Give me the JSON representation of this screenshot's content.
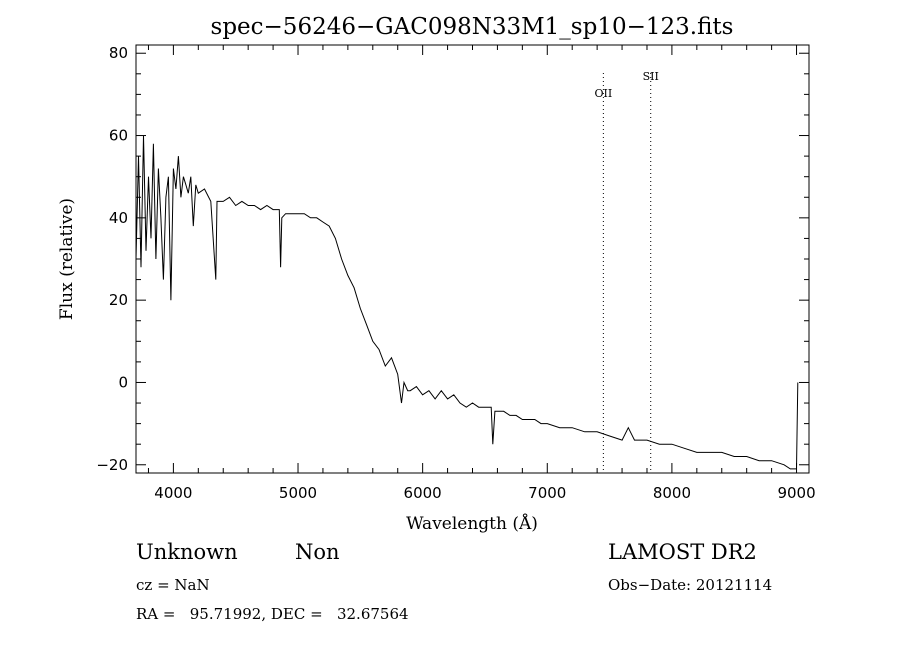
{
  "chart_data": {
    "type": "line",
    "title": "spec−56246−GAC098N33M1_sp10−123.fits",
    "xlabel": "Wavelength (Å)",
    "ylabel": "Flux (relative)",
    "xlim": [
      3700,
      9100
    ],
    "ylim": [
      -22,
      82
    ],
    "xticks": [
      {
        "value": 4000,
        "label": "4000"
      },
      {
        "value": 5000,
        "label": "5000"
      },
      {
        "value": 6000,
        "label": "6000"
      },
      {
        "value": 7000,
        "label": "7000"
      },
      {
        "value": 8000,
        "label": "8000"
      },
      {
        "value": 9000,
        "label": "9000"
      }
    ],
    "yticks": [
      {
        "value": -20,
        "label": "−20"
      },
      {
        "value": 0,
        "label": "0"
      },
      {
        "value": 20,
        "label": "20"
      },
      {
        "value": 40,
        "label": "40"
      },
      {
        "value": 60,
        "label": "60"
      },
      {
        "value": 80,
        "label": "80"
      }
    ],
    "grid": false,
    "series": [
      {
        "x": [
          3700,
          3720,
          3740,
          3760,
          3780,
          3800,
          3820,
          3840,
          3860,
          3880,
          3900,
          3920,
          3940,
          3960,
          3980,
          4000,
          4020,
          4040,
          4060,
          4080,
          4100,
          4120,
          4140,
          4160,
          4180,
          4200,
          4250,
          4300,
          4340,
          4350,
          4400,
          4450,
          4500,
          4550,
          4600,
          4650,
          4700,
          4750,
          4800,
          4850,
          4860,
          4870,
          4900,
          4950,
          5000,
          5050,
          5100,
          5150,
          5200,
          5250,
          5300,
          5350,
          5400,
          5450,
          5500,
          5550,
          5600,
          5650,
          5700,
          5750,
          5800,
          5830,
          5850,
          5880,
          5900,
          5950,
          6000,
          6050,
          6100,
          6150,
          6200,
          6250,
          6300,
          6350,
          6400,
          6450,
          6500,
          6550,
          6563,
          6580,
          6600,
          6650,
          6700,
          6750,
          6800,
          6850,
          6900,
          6950,
          7000,
          7100,
          7200,
          7300,
          7400,
          7500,
          7600,
          7650,
          7700,
          7800,
          7900,
          8000,
          8100,
          8200,
          8300,
          8400,
          8500,
          8600,
          8700,
          8800,
          8900,
          8950,
          9000,
          9010
        ],
        "y": [
          30,
          55,
          28,
          60,
          32,
          50,
          35,
          58,
          30,
          52,
          40,
          25,
          45,
          50,
          20,
          52,
          47,
          55,
          45,
          50,
          48,
          46,
          50,
          38,
          48,
          46,
          47,
          44,
          25,
          44,
          44,
          45,
          43,
          44,
          43,
          43,
          42,
          43,
          42,
          42,
          28,
          40,
          41,
          41,
          41,
          41,
          40,
          40,
          39,
          38,
          35,
          30,
          26,
          23,
          18,
          14,
          10,
          8,
          4,
          6,
          2,
          -5,
          0,
          -2,
          -2,
          -1,
          -3,
          -2,
          -4,
          -2,
          -4,
          -3,
          -5,
          -6,
          -5,
          -6,
          -6,
          -6,
          -15,
          -7,
          -7,
          -7,
          -8,
          -8,
          -9,
          -9,
          -9,
          -10,
          -10,
          -11,
          -11,
          -12,
          -12,
          -13,
          -14,
          -11,
          -14,
          -14,
          -15,
          -15,
          -16,
          -17,
          -17,
          -17,
          -18,
          -18,
          -19,
          -19,
          -20,
          -21,
          -21,
          0
        ]
      }
    ],
    "lines": [
      {
        "x": 7450,
        "label": "OII"
      },
      {
        "x": 7830,
        "label": "SII"
      }
    ]
  },
  "info": {
    "object_class": "Unknown",
    "subclass": "Non",
    "survey": "LAMOST DR2",
    "cz": "cz = NaN",
    "obs_date": "Obs−Date: 20121114",
    "coords": "RA =   95.71992, DEC =   32.67564"
  }
}
